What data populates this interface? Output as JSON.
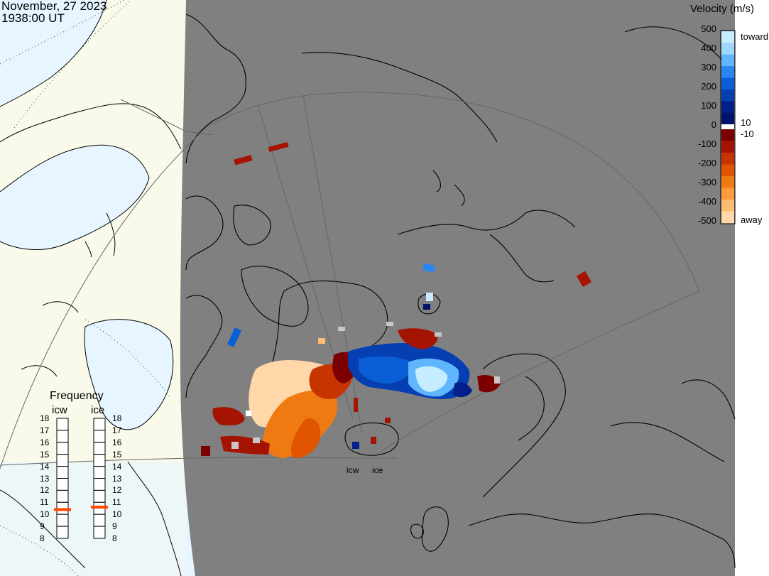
{
  "header": {
    "date": "November, 27 2023",
    "time": "1938:00 UT"
  },
  "velocity_scale": {
    "title": "Velocity (m/s)",
    "toward_label": "toward",
    "away_label": "away",
    "ticks": [
      "500",
      "400",
      "300",
      "200",
      "100",
      "10",
      "0",
      "-10",
      "-100",
      "-200",
      "-300",
      "-400",
      "-500"
    ],
    "colors": {
      "toward": [
        "#c6ecff",
        "#9fd8ff",
        "#5fb6ff",
        "#2a86f0",
        "#0a5ed6",
        "#063fb2",
        "#021f8a",
        "#00136a"
      ],
      "away": [
        "#7d0000",
        "#a51402",
        "#c83400",
        "#e15400",
        "#f07a12",
        "#fb9b3c",
        "#ffbd72",
        "#ffd7a8"
      ],
      "zero": "#ffffff",
      "ground_scatter": "#c8c8c8"
    }
  },
  "frequency": {
    "title": "Frequency",
    "columns": [
      "icw",
      "ice"
    ],
    "scale": [
      "18",
      "17",
      "16",
      "15",
      "14",
      "13",
      "12",
      "11",
      "10",
      "9",
      "8"
    ],
    "icw_value_mhz": 10.4,
    "ice_value_mhz": 10.6,
    "marker_color": "#ff4500"
  },
  "radars": [
    {
      "label": "icw"
    },
    {
      "label": "ice"
    }
  ],
  "map": {
    "night_color": "#808080",
    "day_land_color": "#fafaeb",
    "day_ocean_color": "#e6f5ff",
    "coast_color": "#000000",
    "fov_color": "#666666"
  }
}
